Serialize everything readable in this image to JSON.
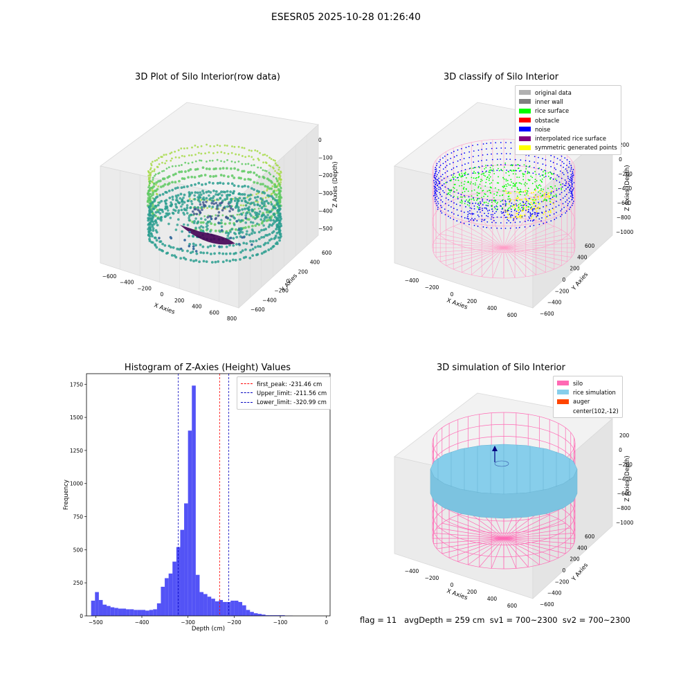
{
  "figure": {
    "suptitle": "ESESR05 2025-10-28 01:26:40",
    "footer": "flag = 11   avgDepth = 259 cm  sv1 = 700~2300  sv2 = 700~2300"
  },
  "chart_data": [
    {
      "type": "scatter",
      "title": "3D Plot of Silo Interior(row data)",
      "xlabel": "X Axies",
      "ylabel": "Y Axies",
      "zlabel": "Z Axies (Depth)",
      "x_ticks": [
        "−600",
        "−400",
        "−200",
        "0",
        "200",
        "400",
        "600",
        "800"
      ],
      "y_ticks": [
        "−600",
        "−400",
        "−200",
        "0",
        "200",
        "400",
        "600"
      ],
      "z_ticks": [
        "−500",
        "−400",
        "−300",
        "−200",
        "−100",
        "0"
      ],
      "colormap": "viridis",
      "colors": {
        "high": "#a6db46",
        "mid": "#2a9d8f",
        "low": "#440154",
        "outlier": "#3b6e9e"
      }
    },
    {
      "type": "scatter",
      "title": "3D classify of Silo Interior",
      "xlabel": "X Axies",
      "ylabel": "Y Axies",
      "zlabel": "Z Axies (Depth)",
      "x_ticks": [
        "−400",
        "−200",
        "0",
        "200",
        "400",
        "600"
      ],
      "y_ticks": [
        "−600",
        "−400",
        "−200",
        "0",
        "200",
        "400",
        "600"
      ],
      "z_ticks": [
        "−1000",
        "−800",
        "−600",
        "−400",
        "−200",
        "0",
        "200"
      ],
      "legend": [
        {
          "label": "original data",
          "color": "#b0b0b0"
        },
        {
          "label": "inner wall",
          "color": "#808080"
        },
        {
          "label": "rice surface",
          "color": "#00ff00"
        },
        {
          "label": "obstacle",
          "color": "#ff0000"
        },
        {
          "label": "noise",
          "color": "#0000ff"
        },
        {
          "label": "interpolated rice surface",
          "color": "#800080"
        },
        {
          "label": "symmetric generated points",
          "color": "#ffff00"
        }
      ],
      "wire_color": "#ff9ec8"
    },
    {
      "type": "bar",
      "title": "Histogram of Z-Axies (Height) Values",
      "xlabel": "Depth (cm)",
      "ylabel": "Frequency",
      "xlim": [
        -520,
        8
      ],
      "ylim": [
        0,
        1830
      ],
      "x_ticks": [
        -500,
        -400,
        -300,
        -200,
        -100,
        0
      ],
      "y_ticks": [
        0,
        250,
        500,
        750,
        1000,
        1250,
        1500,
        1750
      ],
      "bin_start": -510,
      "bin_width": 8.4,
      "values": [
        115,
        180,
        120,
        85,
        75,
        65,
        60,
        55,
        55,
        50,
        50,
        45,
        45,
        45,
        40,
        45,
        50,
        95,
        220,
        285,
        320,
        410,
        520,
        650,
        850,
        1400,
        1740,
        310,
        180,
        165,
        145,
        130,
        110,
        120,
        105,
        105,
        115,
        115,
        105,
        80,
        45,
        30,
        20,
        15,
        10,
        5,
        5,
        5,
        5,
        5,
        2,
        2
      ],
      "bar_color": "#4a4af5",
      "vlines": [
        {
          "label": "first_peak: -231.46 cm",
          "x": -231.46,
          "color": "#ff0000"
        },
        {
          "label": "Upper_limit: -211.56 cm",
          "x": -211.56,
          "color": "#0000c0"
        },
        {
          "label": "Lower_limit: -320.99 cm",
          "x": -320.99,
          "color": "#0000c0"
        }
      ]
    },
    {
      "type": "scatter",
      "title": "3D simulation of Silo Interior",
      "xlabel": "X Axies",
      "ylabel": "Y Axies",
      "zlabel": "Z Axies (Depth)",
      "x_ticks": [
        "−400",
        "−200",
        "0",
        "200",
        "400",
        "600"
      ],
      "y_ticks": [
        "−600",
        "−400",
        "−200",
        "0",
        "200",
        "400",
        "600"
      ],
      "z_ticks": [
        "−1000",
        "−800",
        "−600",
        "−400",
        "−200",
        "0",
        "200"
      ],
      "legend": [
        {
          "label": "silo",
          "color": "#ff69b4"
        },
        {
          "label": "rice simulation",
          "color": "#87ceeb"
        },
        {
          "label": "auger",
          "color": "#ff4500"
        },
        {
          "label": "center(102,-12)",
          "color": ""
        }
      ],
      "wire_color": "#ff69b4",
      "surface_color": "#87ceeb"
    }
  ]
}
